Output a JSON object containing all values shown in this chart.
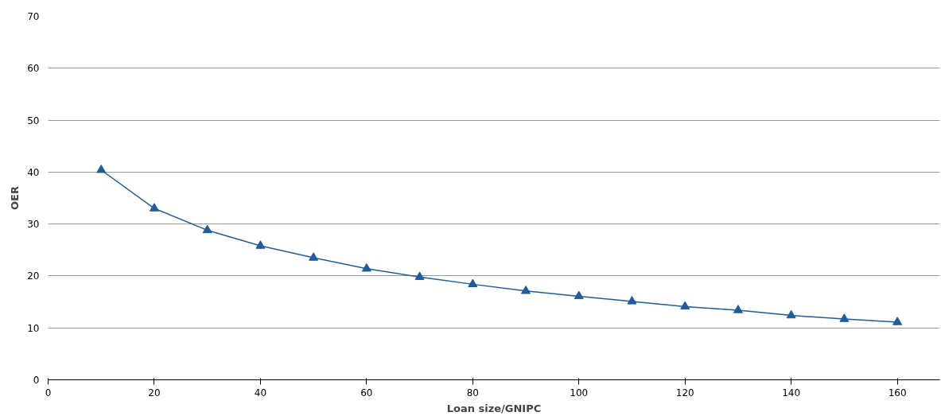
{
  "chart_data": {
    "type": "line",
    "xlabel": "Loan size/GNIPC",
    "ylabel": "OER",
    "x": [
      10,
      20,
      30,
      40,
      50,
      60,
      70,
      80,
      90,
      100,
      110,
      120,
      130,
      140,
      150,
      160
    ],
    "series": [
      {
        "color": "#1f5c99",
        "values": [
          40.4,
          33.0,
          28.8,
          25.8,
          23.5,
          21.4,
          19.8,
          18.4,
          17.1,
          16.1,
          15.1,
          14.1,
          13.4,
          12.4,
          11.7,
          11.1
        ]
      }
    ],
    "xlim": [
      0,
      168
    ],
    "xticks": [
      0,
      20,
      40,
      60,
      80,
      100,
      120,
      140,
      160
    ],
    "ylim": [
      0,
      70
    ],
    "yticks": [
      0,
      10,
      20,
      30,
      40,
      50,
      60,
      70
    ],
    "grid": "y",
    "marker": "triangle",
    "line_style": "solid"
  }
}
